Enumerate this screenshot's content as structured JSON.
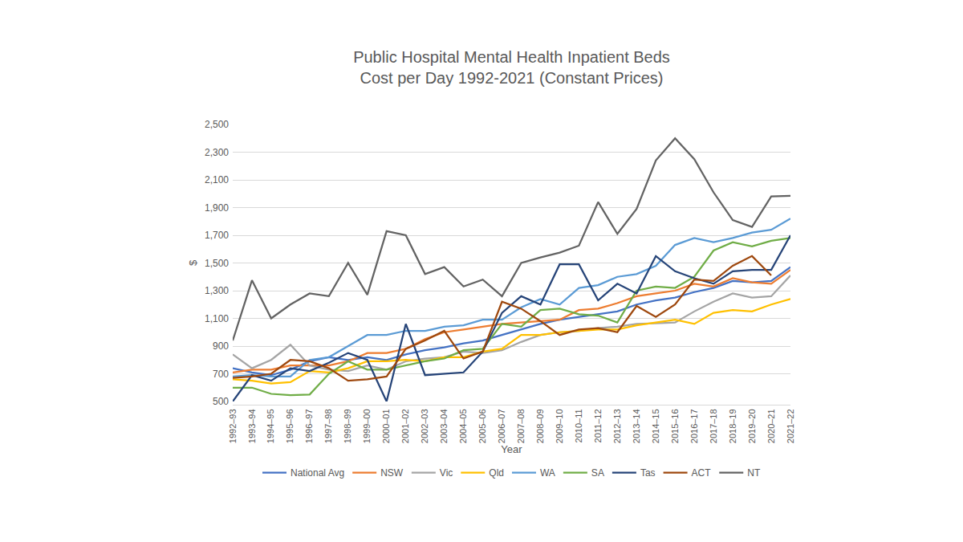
{
  "chart_data": {
    "type": "line",
    "title": "Public Hospital Mental Health Inpatient Beds",
    "subtitle": "Cost per Day 1992-2021 (Constant Prices)",
    "x_label": "Year",
    "y_label": "$",
    "categories": [
      "1992–93",
      "1993–94",
      "1994–95",
      "1995–96",
      "1996–97",
      "1997–98",
      "1998–99",
      "1999–00",
      "2000–01",
      "2001–02",
      "2002–03",
      "2003–04",
      "2004–05",
      "2005–06",
      "2006–07",
      "2007–08",
      "2008–09",
      "2009–10",
      "2010–11",
      "2011–12",
      "2012–13",
      "2013–14",
      "2014–15",
      "2015–16",
      "2016–17",
      "2017–18",
      "2018–19",
      "2019–20",
      "2020–21",
      "2021–22"
    ],
    "series": [
      {
        "name": "National Avg",
        "color": "#4472C4",
        "values": [
          740,
          710,
          690,
          730,
          790,
          820,
          800,
          820,
          800,
          840,
          870,
          890,
          920,
          940,
          980,
          1020,
          1060,
          1090,
          1110,
          1130,
          1150,
          1200,
          1230,
          1250,
          1290,
          1320,
          1370,
          1360,
          1370,
          1470
        ]
      },
      {
        "name": "NSW",
        "color": "#ED7D31",
        "values": [
          710,
          730,
          730,
          760,
          760,
          760,
          790,
          850,
          850,
          880,
          950,
          1000,
          1020,
          1040,
          1060,
          1070,
          1080,
          1090,
          1160,
          1170,
          1210,
          1260,
          1280,
          1300,
          1350,
          1330,
          1390,
          1360,
          1350,
          1450
        ]
      },
      {
        "name": "Vic",
        "color": "#A5A5A5",
        "values": [
          840,
          740,
          800,
          910,
          760,
          730,
          720,
          760,
          730,
          790,
          810,
          820,
          860,
          850,
          870,
          930,
          980,
          1000,
          1010,
          1030,
          1040,
          1060,
          1065,
          1070,
          1150,
          1220,
          1280,
          1250,
          1260,
          1410
        ]
      },
      {
        "name": "Qld",
        "color": "#FFC000",
        "values": [
          660,
          650,
          630,
          640,
          720,
          710,
          740,
          790,
          790,
          800,
          790,
          820,
          820,
          860,
          880,
          980,
          980,
          1000,
          1010,
          1020,
          1020,
          1050,
          1070,
          1090,
          1060,
          1140,
          1160,
          1150,
          1200,
          1240
        ]
      },
      {
        "name": "WA",
        "color": "#5B9BD5",
        "values": [
          680,
          690,
          680,
          680,
          800,
          820,
          900,
          980,
          980,
          1010,
          1010,
          1040,
          1050,
          1090,
          1090,
          1180,
          1240,
          1200,
          1320,
          1340,
          1400,
          1420,
          1480,
          1630,
          1680,
          1650,
          1680,
          1720,
          1740,
          1820
        ]
      },
      {
        "name": "SA",
        "color": "#70AD47",
        "values": [
          600,
          600,
          555,
          545,
          550,
          700,
          790,
          730,
          730,
          760,
          790,
          810,
          870,
          880,
          1060,
          1040,
          1160,
          1170,
          1130,
          1120,
          1070,
          1300,
          1330,
          1320,
          1400,
          1590,
          1650,
          1620,
          1660,
          1680
        ]
      },
      {
        "name": "Tas",
        "color": "#264478",
        "values": [
          500,
          690,
          650,
          740,
          720,
          780,
          850,
          800,
          500,
          1060,
          690,
          700,
          710,
          860,
          1140,
          1260,
          1200,
          1490,
          1490,
          1230,
          1350,
          1280,
          1550,
          1440,
          1390,
          1350,
          1440,
          1450,
          1450,
          1700
        ]
      },
      {
        "name": "ACT",
        "color": "#9E480E",
        "values": [
          670,
          680,
          700,
          800,
          790,
          740,
          650,
          660,
          680,
          880,
          940,
          1010,
          810,
          860,
          1220,
          1170,
          1080,
          980,
          1020,
          1030,
          1000,
          1190,
          1110,
          1200,
          1380,
          1370,
          1480,
          1550,
          1410,
          null
        ]
      },
      {
        "name": "NT",
        "color": "#636363",
        "values": [
          940,
          1375,
          1100,
          1200,
          1280,
          1260,
          1500,
          1270,
          1730,
          1700,
          1420,
          1470,
          1330,
          1380,
          1260,
          1500,
          1540,
          1575,
          1625,
          1940,
          1710,
          1890,
          2240,
          2400,
          2250,
          2010,
          1810,
          1760,
          1980,
          1985
        ]
      }
    ],
    "ylim": [
      500,
      2500
    ],
    "yticks": [
      500,
      700,
      900,
      {
        "value": 1100,
        "label": "1,100"
      },
      {
        "value": 1300,
        "label": "1,300"
      },
      {
        "value": 1500,
        "label": "1,500"
      },
      {
        "value": 1700,
        "label": "1,700"
      },
      {
        "value": 1900,
        "label": "1,900"
      },
      {
        "value": 2100,
        "label": "2,100"
      },
      {
        "value": 2300,
        "label": "2,300"
      },
      {
        "value": 2500,
        "label": "2,500"
      }
    ],
    "grid": true,
    "legend": "bottom"
  }
}
